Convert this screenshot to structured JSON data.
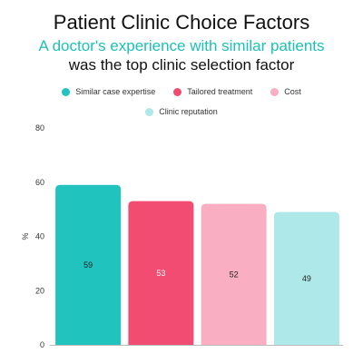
{
  "title": "Patient Clinic Choice Factors",
  "subtitle_line1": "A doctor's experience with similar patients",
  "subtitle_line2": "was the top clinic selection factor",
  "chart_data": {
    "type": "bar",
    "categories": [
      "Similar case expertise",
      "Tailored treatment",
      "Cost",
      "Clinic reputation"
    ],
    "values": [
      59,
      53,
      52,
      49
    ],
    "colors": [
      "#21c3bf",
      "#f34c72",
      "#f9aec2",
      "#aee8e8"
    ],
    "data_labels": [
      "59",
      "53",
      "52",
      "49"
    ],
    "label_colors": [
      "#222222",
      "#ffffff",
      "#222222",
      "#222222"
    ],
    "ylabel": "%",
    "ylim": [
      0,
      80
    ],
    "yticks": [
      0,
      20,
      40,
      60,
      80
    ],
    "grid": false,
    "legend": "top"
  }
}
